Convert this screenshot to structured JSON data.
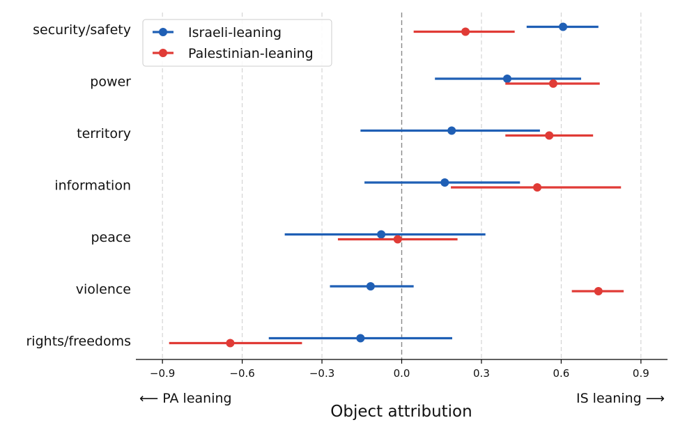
{
  "chart_data": {
    "type": "scatter",
    "subtype": "dot-and-whisker",
    "orientation": "horizontal",
    "categories": [
      "security/safety",
      "power",
      "territory",
      "information",
      "peace",
      "violence",
      "rights/freedoms"
    ],
    "series": [
      {
        "name": "Israeli-leaning",
        "color": "#1f5fb5",
        "values": [
          0.607,
          0.397,
          0.188,
          0.162,
          -0.077,
          -0.117,
          -0.155
        ],
        "ci_low": [
          0.47,
          0.125,
          -0.155,
          -0.14,
          -0.44,
          -0.27,
          -0.5
        ],
        "ci_high": [
          0.74,
          0.675,
          0.52,
          0.445,
          0.315,
          0.045,
          0.19
        ]
      },
      {
        "name": "Palestinian-leaning",
        "color": "#e03b36",
        "values": [
          0.24,
          0.57,
          0.555,
          0.51,
          -0.015,
          0.74,
          -0.645
        ],
        "ci_low": [
          0.045,
          0.39,
          0.39,
          0.185,
          -0.24,
          0.64,
          -0.875
        ],
        "ci_high": [
          0.425,
          0.745,
          0.72,
          0.825,
          0.21,
          0.835,
          -0.375
        ]
      }
    ],
    "xlabel": "Object attribution",
    "xlim": [
      -1.0,
      1.0
    ],
    "xticks": [
      -0.9,
      -0.6,
      -0.3,
      0.0,
      0.3,
      0.6,
      0.9
    ],
    "xtick_labels": [
      "−0.9",
      "−0.6",
      "−0.3",
      "0.0",
      "0.3",
      "0.6",
      "0.9"
    ],
    "grid": "vertical dashed",
    "zero_line": "dashed",
    "legend": "top-left",
    "annotations": {
      "left": "⟵  PA leaning",
      "right": "IS leaning  ⟶"
    }
  }
}
